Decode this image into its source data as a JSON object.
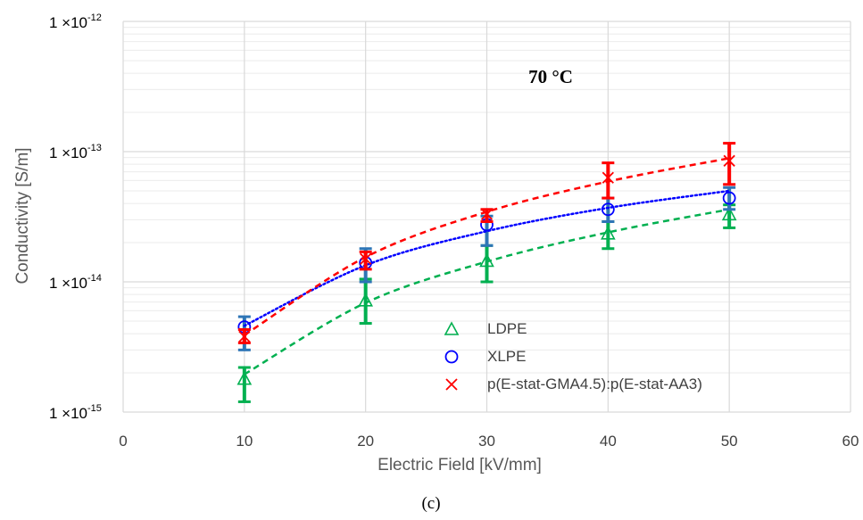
{
  "chart_data": {
    "type": "scatter",
    "annotation": "70 °C",
    "xlabel": "Electric Field [kV/mm]",
    "ylabel": "Conductivity [S/m]",
    "caption": "(c)",
    "xlim": [
      0,
      60
    ],
    "xticks": [
      "0",
      "10",
      "20",
      "30",
      "40",
      "50",
      "60"
    ],
    "ylim": [
      1e-15,
      1e-12
    ],
    "yscale": "log",
    "yticks": [
      {
        "mantissa": "1 ×10",
        "exponent": "-12"
      },
      {
        "mantissa": "1 ×10",
        "exponent": "-13"
      },
      {
        "mantissa": "1 ×10",
        "exponent": "-14"
      },
      {
        "mantissa": "1 ×10",
        "exponent": "-15"
      }
    ],
    "grid": true,
    "legend_position": "lower-right",
    "x": [
      10,
      20,
      30,
      40,
      50
    ],
    "series": [
      {
        "name": "LDPE",
        "marker": "triangle",
        "color": "#00b050",
        "fit_style": "dashed",
        "values": [
          1.8e-15,
          7.2e-15,
          1.45e-14,
          2.35e-14,
          3.3e-14
        ],
        "error_low": [
          1.2e-15,
          4.8e-15,
          1e-14,
          1.8e-14,
          2.6e-14
        ],
        "error_high": [
          2.2e-15,
          1.05e-14,
          1.9e-14,
          2.9e-14,
          3.9e-14
        ],
        "fit": [
          1.95e-15,
          6.9e-15,
          1.43e-14,
          2.4e-14,
          3.6e-14
        ]
      },
      {
        "name": "XLPE",
        "marker": "circle",
        "color": "#0000ff",
        "fit_style": "dotted",
        "values": [
          4.5e-15,
          1.4e-14,
          2.75e-14,
          3.6e-14,
          4.4e-14
        ],
        "error_low": [
          3e-15,
          1e-14,
          1.9e-14,
          2.9e-14,
          3.6e-14
        ],
        "error_high": [
          5.4e-15,
          1.8e-14,
          3.2e-14,
          4.4e-14,
          5.3e-14
        ],
        "fit": [
          4.6e-15,
          1.34e-14,
          2.45e-14,
          3.7e-14,
          5e-14
        ]
      },
      {
        "name": "p(E-stat-GMA4.5):p(E-stat-AA3)",
        "marker": "x",
        "color": "#ff0000",
        "fit_style": "dashed",
        "values": [
          3.8e-15,
          1.5e-14,
          3.3e-14,
          6.3e-14,
          8.5e-14
        ],
        "error_low": [
          3.4e-15,
          1.25e-14,
          2.9e-14,
          4.4e-14,
          5.6e-14
        ],
        "error_high": [
          4.3e-15,
          1.7e-14,
          3.6e-14,
          8.2e-14,
          1.16e-13
        ],
        "fit": [
          3.9e-15,
          1.55e-14,
          3.45e-14,
          5.9e-14,
          8.9e-14
        ]
      }
    ]
  }
}
